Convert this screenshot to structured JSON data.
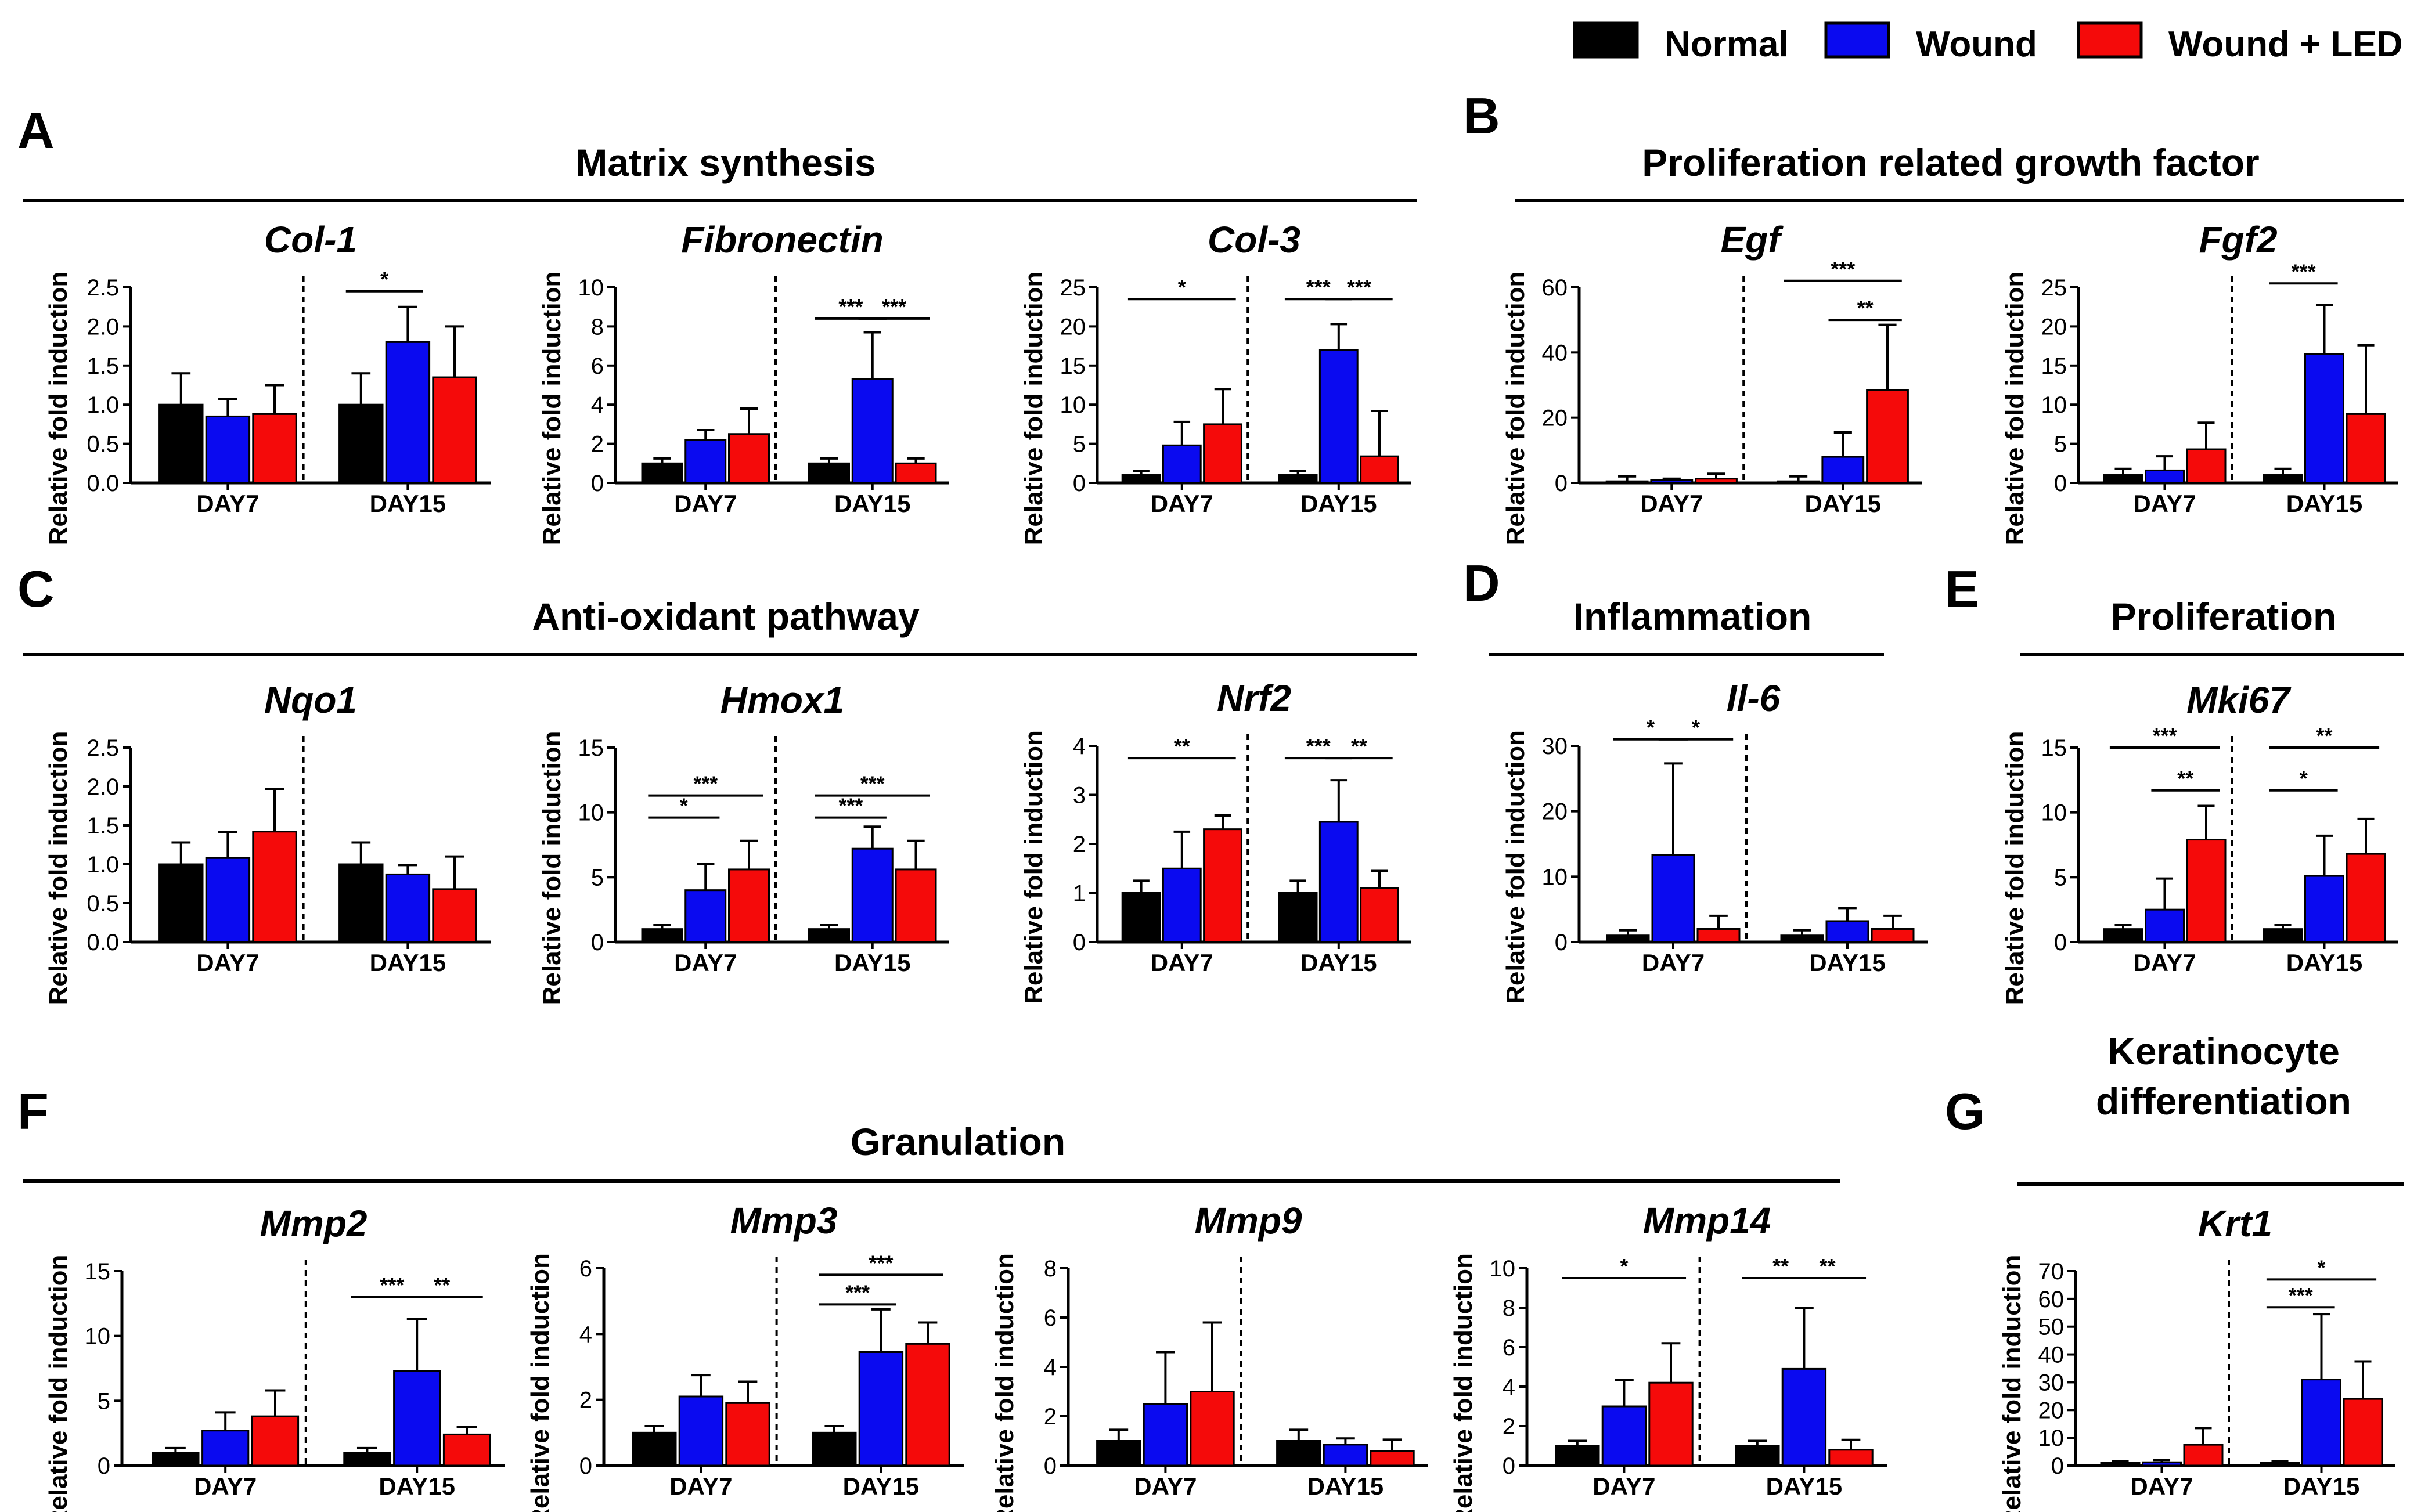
{
  "legend": [
    {
      "name": "Normal",
      "color": "#000000"
    },
    {
      "name": "Wound",
      "color": "#0a0af0"
    },
    {
      "name": "Wound + LED",
      "color": "#f50a0a"
    }
  ],
  "sections": [
    {
      "letter": "A",
      "title": "Matrix synthesis"
    },
    {
      "letter": "B",
      "title": "Proliferation related growth factor"
    },
    {
      "letter": "C",
      "title": "Anti-oxidant pathway"
    },
    {
      "letter": "D",
      "title": "Inflammation"
    },
    {
      "letter": "E",
      "title": "Proliferation"
    },
    {
      "letter": "F",
      "title": "Granulation"
    },
    {
      "letter": "G",
      "title": "Keratinocyte\ndifferentiation"
    }
  ],
  "chart_data": [
    {
      "type": "bar",
      "title": "Col-1",
      "ylabel": "Relative fold induction",
      "categories": [
        "DAY7",
        "DAY15"
      ],
      "ylim": [
        0,
        2.5
      ],
      "yticks": [
        "0.0",
        "0.5",
        "1.0",
        "1.5",
        "2.0",
        "2.5"
      ],
      "series": [
        {
          "name": "Normal",
          "values": [
            1.0,
            1.0
          ],
          "errors": [
            0.4,
            0.4
          ]
        },
        {
          "name": "Wound",
          "values": [
            0.85,
            1.8
          ],
          "errors": [
            0.22,
            0.45
          ]
        },
        {
          "name": "Wound + LED",
          "values": [
            0.88,
            1.35
          ],
          "errors": [
            0.37,
            0.65
          ]
        }
      ],
      "significance": [
        {
          "label": "*",
          "group": 1,
          "from": 0,
          "to": 1,
          "level": 2.45
        }
      ]
    },
    {
      "type": "bar",
      "title": "Fibronectin",
      "ylabel": "Relative fold induction",
      "categories": [
        "DAY7",
        "DAY15"
      ],
      "ylim": [
        0,
        10
      ],
      "yticks": [
        "0",
        "2",
        "4",
        "6",
        "8",
        "10"
      ],
      "series": [
        {
          "name": "Normal",
          "values": [
            1.0,
            1.0
          ],
          "errors": [
            0.25,
            0.25
          ]
        },
        {
          "name": "Wound",
          "values": [
            2.2,
            5.3
          ],
          "errors": [
            0.5,
            2.4
          ]
        },
        {
          "name": "Wound + LED",
          "values": [
            2.5,
            1.0
          ],
          "errors": [
            1.3,
            0.25
          ]
        }
      ],
      "significance": [
        {
          "label": "***",
          "group": 1,
          "from": 0,
          "to": 1,
          "level": 8.4
        },
        {
          "label": "***",
          "group": 1,
          "from": 1,
          "to": 2,
          "level": 8.4
        }
      ]
    },
    {
      "type": "bar",
      "title": "Col-3",
      "ylabel": "Relative fold induction",
      "categories": [
        "DAY7",
        "DAY15"
      ],
      "ylim": [
        0,
        25
      ],
      "yticks": [
        "0",
        "5",
        "10",
        "15",
        "20",
        "25"
      ],
      "series": [
        {
          "name": "Normal",
          "values": [
            1.0,
            1.0
          ],
          "errors": [
            0.5,
            0.5
          ]
        },
        {
          "name": "Wound",
          "values": [
            4.8,
            17.0
          ],
          "errors": [
            3.0,
            3.3
          ]
        },
        {
          "name": "Wound + LED",
          "values": [
            7.5,
            3.4
          ],
          "errors": [
            4.5,
            5.8
          ]
        }
      ],
      "significance": [
        {
          "label": "*",
          "group": 0,
          "from": 0,
          "to": 2,
          "level": 23.5
        },
        {
          "label": "***",
          "group": 1,
          "from": 0,
          "to": 1,
          "level": 23.5
        },
        {
          "label": "***",
          "group": 1,
          "from": 1,
          "to": 2,
          "level": 23.5
        }
      ]
    },
    {
      "type": "bar",
      "title": "Egf",
      "ylabel": "Relative fold induction",
      "categories": [
        "DAY7",
        "DAY15"
      ],
      "ylim": [
        0,
        60
      ],
      "yticks": [
        "0",
        "20",
        "40",
        "60"
      ],
      "series": [
        {
          "name": "Normal",
          "values": [
            0.5,
            0.5
          ],
          "errors": [
            1.5,
            1.5
          ]
        },
        {
          "name": "Wound",
          "values": [
            0.8,
            8.0
          ],
          "errors": [
            0.5,
            7.5
          ]
        },
        {
          "name": "Wound + LED",
          "values": [
            1.3,
            28.5
          ],
          "errors": [
            1.5,
            20.0
          ]
        }
      ],
      "significance": [
        {
          "label": "***",
          "group": 1,
          "from": 0,
          "to": 2,
          "level": 62
        },
        {
          "label": "**",
          "group": 1,
          "from": 1,
          "to": 2,
          "level": 50
        }
      ]
    },
    {
      "type": "bar",
      "title": "Fgf2",
      "ylabel": "Relative fold induction",
      "categories": [
        "DAY7",
        "DAY15"
      ],
      "ylim": [
        0,
        25
      ],
      "yticks": [
        "0",
        "5",
        "10",
        "15",
        "20",
        "25"
      ],
      "series": [
        {
          "name": "Normal",
          "values": [
            1.0,
            1.0
          ],
          "errors": [
            0.8,
            0.8
          ]
        },
        {
          "name": "Wound",
          "values": [
            1.6,
            16.5
          ],
          "errors": [
            1.8,
            6.2
          ]
        },
        {
          "name": "Wound + LED",
          "values": [
            4.3,
            8.8
          ],
          "errors": [
            3.4,
            8.8
          ]
        }
      ],
      "significance": [
        {
          "label": "***",
          "group": 1,
          "from": 0,
          "to": 1,
          "level": 25.5
        }
      ]
    },
    {
      "type": "bar",
      "title": "Nqo1",
      "ylabel": "Relative fold induction",
      "categories": [
        "DAY7",
        "DAY15"
      ],
      "ylim": [
        0,
        2.5
      ],
      "yticks": [
        "0.0",
        "0.5",
        "1.0",
        "1.5",
        "2.0",
        "2.5"
      ],
      "series": [
        {
          "name": "Normal",
          "values": [
            1.0,
            1.0
          ],
          "errors": [
            0.28,
            0.28
          ]
        },
        {
          "name": "Wound",
          "values": [
            1.08,
            0.87
          ],
          "errors": [
            0.33,
            0.12
          ]
        },
        {
          "name": "Wound + LED",
          "values": [
            1.42,
            0.68
          ],
          "errors": [
            0.55,
            0.42
          ]
        }
      ],
      "significance": []
    },
    {
      "type": "bar",
      "title": "Hmox1",
      "ylabel": "Relative fold induction",
      "categories": [
        "DAY7",
        "DAY15"
      ],
      "ylim": [
        0,
        15
      ],
      "yticks": [
        "0",
        "5",
        "10",
        "15"
      ],
      "series": [
        {
          "name": "Normal",
          "values": [
            1.0,
            1.0
          ],
          "errors": [
            0.3,
            0.3
          ]
        },
        {
          "name": "Wound",
          "values": [
            4.0,
            7.2
          ],
          "errors": [
            2.0,
            1.7
          ]
        },
        {
          "name": "Wound + LED",
          "values": [
            5.6,
            5.6
          ],
          "errors": [
            2.2,
            2.2
          ]
        }
      ],
      "significance": [
        {
          "label": "***",
          "group": 0,
          "from": 0,
          "to": 2,
          "level": 11.3
        },
        {
          "label": "*",
          "group": 0,
          "from": 0,
          "to": 1,
          "level": 9.6
        },
        {
          "label": "***",
          "group": 1,
          "from": 0,
          "to": 2,
          "level": 11.3
        },
        {
          "label": "***",
          "group": 1,
          "from": 0,
          "to": 1,
          "level": 9.6
        }
      ]
    },
    {
      "type": "bar",
      "title": "Nrf2",
      "ylabel": "Relative fold induction",
      "categories": [
        "DAY7",
        "DAY15"
      ],
      "ylim": [
        0,
        4
      ],
      "yticks": [
        "0",
        "1",
        "2",
        "3",
        "4"
      ],
      "series": [
        {
          "name": "Normal",
          "values": [
            1.0,
            1.0
          ],
          "errors": [
            0.25,
            0.25
          ]
        },
        {
          "name": "Wound",
          "values": [
            1.5,
            2.45
          ],
          "errors": [
            0.75,
            0.85
          ]
        },
        {
          "name": "Wound + LED",
          "values": [
            2.3,
            1.1
          ],
          "errors": [
            0.28,
            0.35
          ]
        }
      ],
      "significance": [
        {
          "label": "**",
          "group": 0,
          "from": 0,
          "to": 2,
          "level": 3.75
        },
        {
          "label": "***",
          "group": 1,
          "from": 0,
          "to": 1,
          "level": 3.75
        },
        {
          "label": "**",
          "group": 1,
          "from": 1,
          "to": 2,
          "level": 3.75
        }
      ]
    },
    {
      "type": "bar",
      "title": "Il-6",
      "ylabel": "Relative fold induction",
      "categories": [
        "DAY7",
        "DAY15"
      ],
      "ylim": [
        0,
        30
      ],
      "yticks": [
        "0",
        "10",
        "20",
        "30"
      ],
      "series": [
        {
          "name": "Normal",
          "values": [
            1.0,
            1.0
          ],
          "errors": [
            0.8,
            0.8
          ]
        },
        {
          "name": "Wound",
          "values": [
            13.3,
            3.2
          ],
          "errors": [
            14.0,
            2.0
          ]
        },
        {
          "name": "Wound + LED",
          "values": [
            2.0,
            2.0
          ],
          "errors": [
            2.0,
            2.0
          ]
        }
      ],
      "significance": [
        {
          "label": "*",
          "group": 0,
          "from": 0,
          "to": 1,
          "level": 31
        },
        {
          "label": "*",
          "group": 0,
          "from": 1,
          "to": 2,
          "level": 31
        }
      ]
    },
    {
      "type": "bar",
      "title": "Mki67",
      "ylabel": "Relative fold induction",
      "categories": [
        "DAY7",
        "DAY15"
      ],
      "ylim": [
        0,
        15
      ],
      "yticks": [
        "0",
        "5",
        "10",
        "15"
      ],
      "series": [
        {
          "name": "Normal",
          "values": [
            1.0,
            1.0
          ],
          "errors": [
            0.3,
            0.3
          ]
        },
        {
          "name": "Wound",
          "values": [
            2.5,
            5.1
          ],
          "errors": [
            2.4,
            3.1
          ]
        },
        {
          "name": "Wound + LED",
          "values": [
            7.9,
            6.8
          ],
          "errors": [
            2.6,
            2.7
          ]
        }
      ],
      "significance": [
        {
          "label": "***",
          "group": 0,
          "from": 0,
          "to": 2,
          "level": 15.0
        },
        {
          "label": "**",
          "group": 0,
          "from": 1,
          "to": 2,
          "level": 11.7
        },
        {
          "label": "**",
          "group": 1,
          "from": 0,
          "to": 2,
          "level": 15.0
        },
        {
          "label": "*",
          "group": 1,
          "from": 0,
          "to": 1,
          "level": 11.7
        }
      ]
    },
    {
      "type": "bar",
      "title": "Mmp2",
      "ylabel": "Relative fold induction",
      "categories": [
        "DAY7",
        "DAY15"
      ],
      "ylim": [
        0,
        15
      ],
      "yticks": [
        "0",
        "5",
        "10",
        "15"
      ],
      "series": [
        {
          "name": "Normal",
          "values": [
            1.0,
            1.0
          ],
          "errors": [
            0.35,
            0.35
          ]
        },
        {
          "name": "Wound",
          "values": [
            2.7,
            7.3
          ],
          "errors": [
            1.4,
            4.0
          ]
        },
        {
          "name": "Wound + LED",
          "values": [
            3.8,
            2.4
          ],
          "errors": [
            2.0,
            0.6
          ]
        }
      ],
      "significance": [
        {
          "label": "***",
          "group": 1,
          "from": 0,
          "to": 1,
          "level": 13.0
        },
        {
          "label": "**",
          "group": 1,
          "from": 1,
          "to": 2,
          "level": 13.0
        }
      ]
    },
    {
      "type": "bar",
      "title": "Mmp3",
      "ylabel": "Relative fold induction",
      "categories": [
        "DAY7",
        "DAY15"
      ],
      "ylim": [
        0,
        6
      ],
      "yticks": [
        "0",
        "2",
        "4",
        "6"
      ],
      "series": [
        {
          "name": "Normal",
          "values": [
            1.0,
            1.0
          ],
          "errors": [
            0.2,
            0.2
          ]
        },
        {
          "name": "Wound",
          "values": [
            2.1,
            3.45
          ],
          "errors": [
            0.65,
            1.3
          ]
        },
        {
          "name": "Wound + LED",
          "values": [
            1.9,
            3.7
          ],
          "errors": [
            0.65,
            0.65
          ]
        }
      ],
      "significance": [
        {
          "label": "***",
          "group": 1,
          "from": 0,
          "to": 2,
          "level": 5.8
        },
        {
          "label": "***",
          "group": 1,
          "from": 0,
          "to": 1,
          "level": 4.9
        }
      ]
    },
    {
      "type": "bar",
      "title": "Mmp9",
      "ylabel": "Relative fold induction",
      "categories": [
        "DAY7",
        "DAY15"
      ],
      "ylim": [
        0,
        8
      ],
      "yticks": [
        "0",
        "2",
        "4",
        "6",
        "8"
      ],
      "series": [
        {
          "name": "Normal",
          "values": [
            1.0,
            1.0
          ],
          "errors": [
            0.45,
            0.45
          ]
        },
        {
          "name": "Wound",
          "values": [
            2.5,
            0.85
          ],
          "errors": [
            2.1,
            0.25
          ]
        },
        {
          "name": "Wound + LED",
          "values": [
            3.0,
            0.6
          ],
          "errors": [
            2.8,
            0.45
          ]
        }
      ],
      "significance": []
    },
    {
      "type": "bar",
      "title": "Mmp14",
      "ylabel": "Relative fold induction",
      "categories": [
        "DAY7",
        "DAY15"
      ],
      "ylim": [
        0,
        10
      ],
      "yticks": [
        "0",
        "2",
        "4",
        "6",
        "8",
        "10"
      ],
      "series": [
        {
          "name": "Normal",
          "values": [
            1.0,
            1.0
          ],
          "errors": [
            0.25,
            0.25
          ]
        },
        {
          "name": "Wound",
          "values": [
            3.0,
            4.9
          ],
          "errors": [
            1.35,
            3.1
          ]
        },
        {
          "name": "Wound + LED",
          "values": [
            4.2,
            0.8
          ],
          "errors": [
            2.0,
            0.5
          ]
        }
      ],
      "significance": [
        {
          "label": "*",
          "group": 0,
          "from": 0,
          "to": 2,
          "level": 9.5
        },
        {
          "label": "**",
          "group": 1,
          "from": 0,
          "to": 1,
          "level": 9.5
        },
        {
          "label": "**",
          "group": 1,
          "from": 1,
          "to": 2,
          "level": 9.5
        }
      ]
    },
    {
      "type": "bar",
      "title": "Krt1",
      "ylabel": "Relative fold induction",
      "categories": [
        "DAY7",
        "DAY15"
      ],
      "ylim": [
        0,
        70
      ],
      "yticks": [
        "0",
        "10",
        "20",
        "30",
        "40",
        "50",
        "60",
        "70"
      ],
      "series": [
        {
          "name": "Normal",
          "values": [
            1.0,
            1.0
          ],
          "errors": [
            0.5,
            0.5
          ]
        },
        {
          "name": "Wound",
          "values": [
            1.2,
            31.0
          ],
          "errors": [
            0.8,
            23.5
          ]
        },
        {
          "name": "Wound + LED",
          "values": [
            7.5,
            24.0
          ],
          "errors": [
            6.0,
            13.5
          ]
        }
      ],
      "significance": [
        {
          "label": "*",
          "group": 1,
          "from": 0,
          "to": 2,
          "level": 67
        },
        {
          "label": "***",
          "group": 1,
          "from": 0,
          "to": 1,
          "level": 57
        }
      ]
    }
  ]
}
